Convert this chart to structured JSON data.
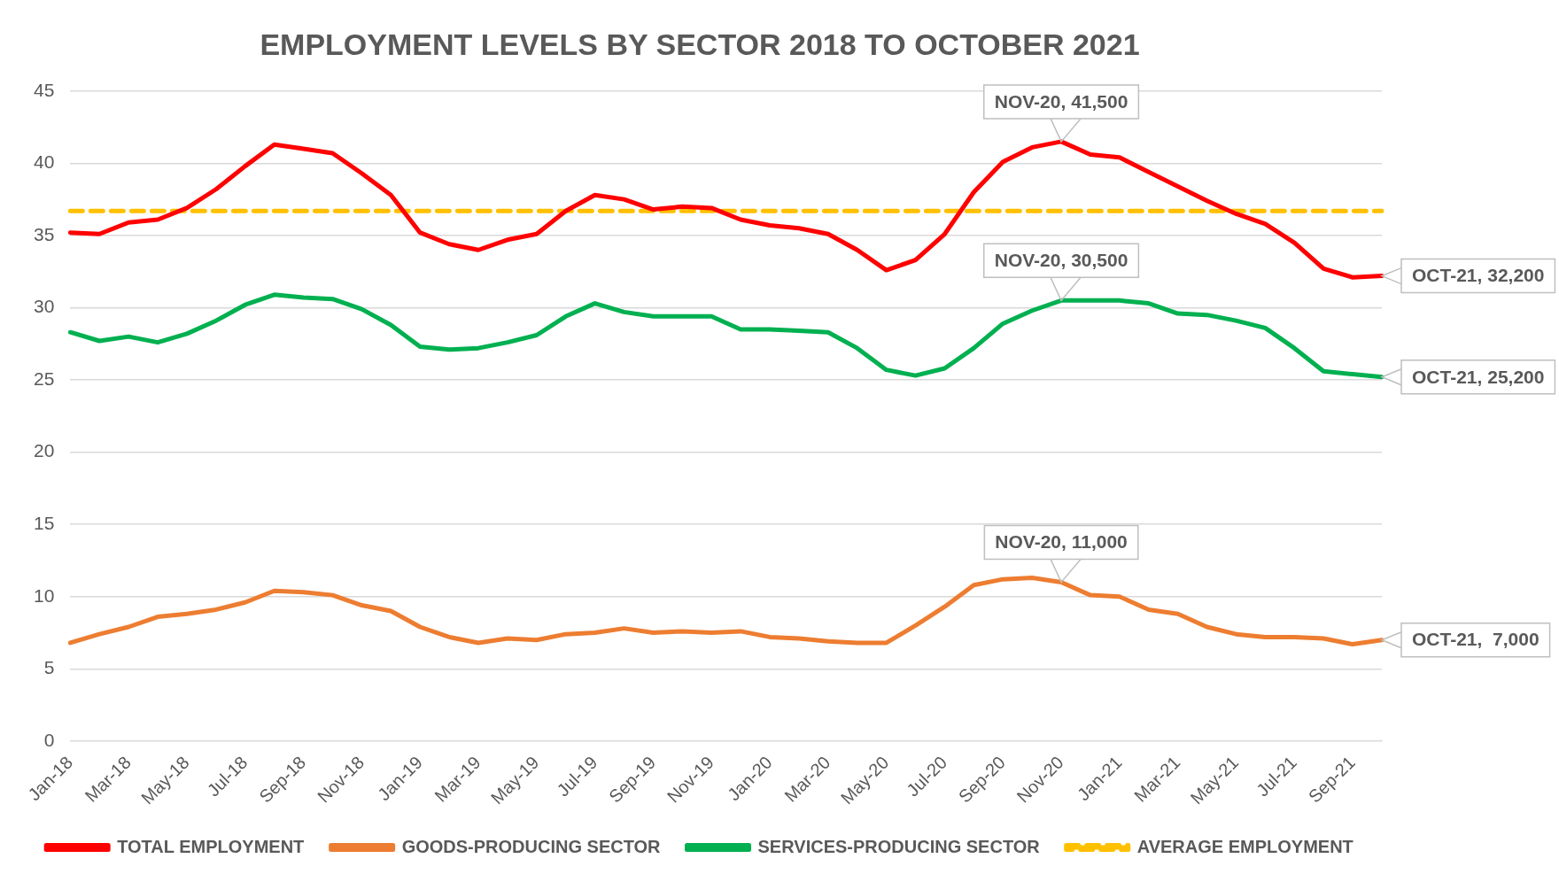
{
  "chart_data": {
    "type": "line",
    "title": "EMPLOYMENT LEVELS BY SECTOR 2018 TO OCTOBER 2021",
    "categories": [
      "Jan-18",
      null,
      "Mar-18",
      null,
      "May-18",
      null,
      "Jul-18",
      null,
      "Sep-18",
      null,
      "Nov-18",
      null,
      "Jan-19",
      null,
      "Mar-19",
      null,
      "May-19",
      null,
      "Jul-19",
      null,
      "Sep-19",
      null,
      "Nov-19",
      null,
      "Jan-20",
      null,
      "Mar-20",
      null,
      "May-20",
      null,
      "Jul-20",
      null,
      "Sep-20",
      null,
      "Nov-20",
      null,
      "Jan-21",
      null,
      "Mar-21",
      null,
      "May-21",
      null,
      "Jul-21",
      null,
      "Sep-21",
      null
    ],
    "series": [
      {
        "name": "TOTAL EMPLOYMENT",
        "color": "#ff0000",
        "values": [
          35.2,
          35.1,
          35.9,
          36.1,
          36.9,
          38.2,
          39.8,
          41.3,
          41.0,
          40.7,
          39.3,
          37.8,
          35.2,
          34.4,
          34.0,
          34.7,
          35.1,
          36.7,
          37.8,
          37.5,
          36.8,
          37.0,
          36.9,
          36.1,
          35.7,
          35.5,
          35.1,
          34.0,
          32.6,
          33.3,
          35.1,
          38.0,
          40.1,
          41.1,
          41.5,
          40.6,
          40.4,
          39.4,
          38.4,
          37.4,
          36.5,
          35.8,
          34.5,
          32.7,
          32.1,
          32.2
        ],
        "value_labels": [
          null,
          null,
          null,
          null,
          null,
          null,
          null,
          null,
          null,
          null,
          null,
          null,
          null,
          null,
          null,
          null,
          null,
          null,
          null,
          null,
          null,
          null,
          null,
          null,
          null,
          null,
          null,
          null,
          null,
          null,
          null,
          null,
          null,
          null,
          "NOV-20, 41,500",
          null,
          null,
          null,
          null,
          null,
          null,
          null,
          null,
          null,
          null,
          "OCT-21, 32,200"
        ]
      },
      {
        "name": "GOODS-PRODUCING SECTOR",
        "color": "#ed7d31",
        "values": [
          6.8,
          7.4,
          7.9,
          8.6,
          8.8,
          9.1,
          9.6,
          10.4,
          10.3,
          10.1,
          9.4,
          9.0,
          7.9,
          7.2,
          6.8,
          7.1,
          7.0,
          7.4,
          7.5,
          7.8,
          7.5,
          7.6,
          7.5,
          7.6,
          7.2,
          7.1,
          6.9,
          6.8,
          6.8,
          8.0,
          9.3,
          10.8,
          11.2,
          11.3,
          11.0,
          10.1,
          10.0,
          9.1,
          8.8,
          7.9,
          7.4,
          7.2,
          7.2,
          7.1,
          6.7,
          7.0
        ],
        "value_labels": [
          null,
          null,
          null,
          null,
          null,
          null,
          null,
          null,
          null,
          null,
          null,
          null,
          null,
          null,
          null,
          null,
          null,
          null,
          null,
          null,
          null,
          null,
          null,
          null,
          null,
          null,
          null,
          null,
          null,
          null,
          null,
          null,
          null,
          null,
          "NOV-20, 11,000",
          null,
          null,
          null,
          null,
          null,
          null,
          null,
          null,
          null,
          null,
          "OCT-21,  7,000"
        ]
      },
      {
        "name": "SERVICES-PRODUCING SECTOR",
        "color": "#00b050",
        "values": [
          28.3,
          27.7,
          28.0,
          27.6,
          28.2,
          29.1,
          30.2,
          30.9,
          30.7,
          30.6,
          29.9,
          28.8,
          27.3,
          27.1,
          27.2,
          27.6,
          28.1,
          29.4,
          30.3,
          29.7,
          29.4,
          29.4,
          29.4,
          28.5,
          28.5,
          28.4,
          28.3,
          27.2,
          25.7,
          25.3,
          25.8,
          27.2,
          28.9,
          29.8,
          30.5,
          30.5,
          30.5,
          30.3,
          29.6,
          29.5,
          29.1,
          28.6,
          27.2,
          25.6,
          25.4,
          25.2
        ],
        "value_labels": [
          null,
          null,
          null,
          null,
          null,
          null,
          null,
          null,
          null,
          null,
          null,
          null,
          null,
          null,
          null,
          null,
          null,
          null,
          null,
          null,
          null,
          null,
          null,
          null,
          null,
          null,
          null,
          null,
          null,
          null,
          null,
          null,
          null,
          null,
          "NOV-20, 30,500",
          null,
          null,
          null,
          null,
          null,
          null,
          null,
          null,
          null,
          null,
          "OCT-21, 25,200"
        ]
      },
      {
        "name": "AVERAGE EMPLOYMENT",
        "color": "#ffc000",
        "line_style": "dashed",
        "values": [
          36.7,
          36.7,
          36.7,
          36.7,
          36.7,
          36.7,
          36.7,
          36.7,
          36.7,
          36.7,
          36.7,
          36.7,
          36.7,
          36.7,
          36.7,
          36.7,
          36.7,
          36.7,
          36.7,
          36.7,
          36.7,
          36.7,
          36.7,
          36.7,
          36.7,
          36.7,
          36.7,
          36.7,
          36.7,
          36.7,
          36.7,
          36.7,
          36.7,
          36.7,
          36.7,
          36.7,
          36.7,
          36.7,
          36.7,
          36.7,
          36.7,
          36.7,
          36.7,
          36.7,
          36.7,
          36.7
        ]
      }
    ],
    "ylim": [
      0,
      45
    ],
    "yticks": [
      0,
      5,
      10,
      15,
      20,
      25,
      30,
      35,
      40,
      45
    ],
    "grid": "y",
    "legend": "bottom",
    "marker": "none",
    "line_style": "solid"
  }
}
